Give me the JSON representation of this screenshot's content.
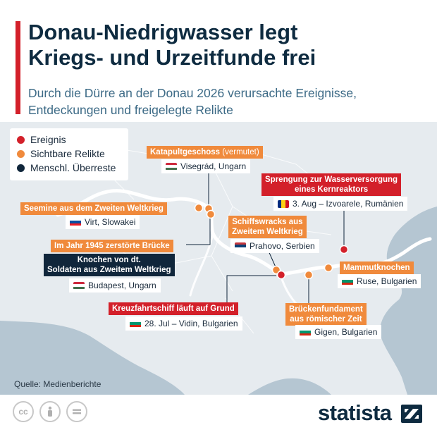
{
  "header": {
    "title_lines": [
      "Donau-Niedrigwasser legt",
      "Kriegs- und Urzeitfunde frei"
    ],
    "subtitle_lines": [
      "Durch die Dürre an der Donau 2026 verursachte Ereignisse,",
      "Entdeckungen und freigelegte Relikte"
    ]
  },
  "colors": {
    "event": "#d3202a",
    "relic": "#f08a3c",
    "remains": "#10263b",
    "water": "#b5c6d2",
    "land": "#e6ebef",
    "river": "#ffffff"
  },
  "legend": [
    {
      "label": "Ereignis",
      "category": "event"
    },
    {
      "label": "Sichtbare Relikte",
      "category": "relic"
    },
    {
      "label": "Menschl. Überreste",
      "category": "remains"
    }
  ],
  "markers": [
    {
      "category": "relic",
      "title_main": "Katapultgeschoss",
      "title_note": "(vermutet)",
      "location": "Visegrád, Ungarn",
      "flag": "hu"
    },
    {
      "category": "event",
      "title_lines": [
        "Sprengung zur Wasserversorgung",
        "eines Kernreaktors"
      ],
      "location": "3. Aug – Izvoarele, Rumänien",
      "flag": "ro"
    },
    {
      "category": "relic",
      "title": "Seemine aus dem Zweiten Weltkrieg",
      "location": "Virt, Slowakei",
      "flag": "sk"
    },
    {
      "category": "relic",
      "title_lines": [
        "Schiffswracks aus",
        "Zweitem Weltkrieg"
      ],
      "location": "Prahovo, Serbien",
      "flag": "rs"
    },
    {
      "category": "relic",
      "title": "Im Jahr 1945 zerstörte Brücke"
    },
    {
      "category": "remains",
      "title_lines": [
        "Knochen von dt.",
        "Soldaten aus Zweitem Weltkrieg"
      ],
      "location": "Budapest, Ungarn",
      "flag": "hu"
    },
    {
      "category": "relic",
      "title": "Mammutknochen",
      "location": "Ruse, Bulgarien",
      "flag": "bg"
    },
    {
      "category": "event",
      "title": "Kreuzfahrtschiff läuft auf Grund",
      "location": "28. Jul – Vidin, Bulgarien",
      "flag": "bg"
    },
    {
      "category": "relic",
      "title_lines": [
        "Brückenfundament",
        "aus römischer Zeit"
      ],
      "location": "Gigen, Bulgarien",
      "flag": "bg"
    }
  ],
  "footer": {
    "source": "Quelle: Medienberichte",
    "brand": "statista",
    "license_icons": [
      "cc-icon",
      "by-icon",
      "nd-icon"
    ]
  }
}
